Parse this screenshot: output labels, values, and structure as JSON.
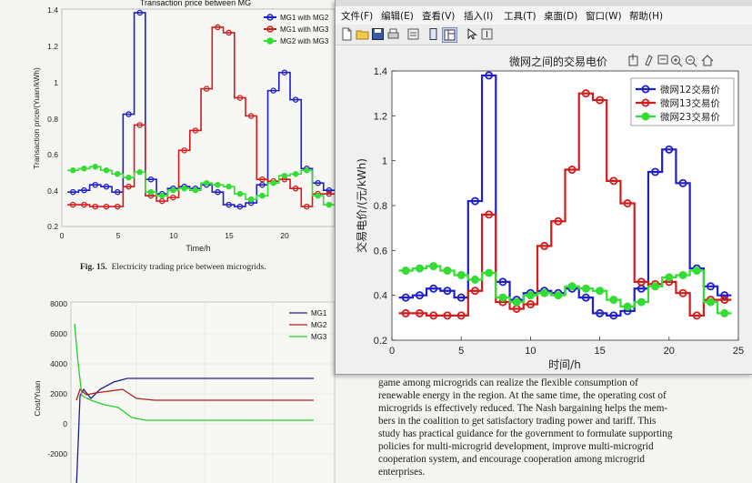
{
  "paper": {
    "top_chart": {
      "title": "Transaction price between MG",
      "ylabel": "Transaction price/(Yuan/kWh)",
      "xlabel": "Time/h",
      "yticks": [
        "1.4",
        "1.2",
        "1",
        "0.8",
        "0.6",
        "0.4",
        "0.2"
      ],
      "xticks": [
        "0",
        "5",
        "10",
        "15",
        "20"
      ],
      "legend": [
        "MG1 with MG2",
        "MG1 with MG3",
        "MG2 with MG3"
      ]
    },
    "caption_label": "Fig. 15.",
    "caption_text": "Electricity trading price between microgrids.",
    "bottom_chart": {
      "ylabel": "Cost/Yuan",
      "yticks": [
        "8000",
        "6000",
        "4000",
        "2000",
        "0",
        "-2000"
      ],
      "legend": [
        "MG1",
        "MG2",
        "MG3"
      ]
    },
    "body_lines": [
      "game among microgrids can realize the flexible consumption of",
      "renewable energy in the region. At the same time, the operating cost of",
      "microgrids is effectively reduced. The Nash bargaining helps the mem-",
      "bers in the coalition to get satisfactory trading power and tariff. This",
      "study has practical guidance for the government to formulate supporting",
      "policies for multi-microgrid development, improve multi-microgrid",
      "cooperation system, and encourage cooperation among microgrid",
      "enterprises."
    ]
  },
  "window": {
    "menu": [
      "文件(F)",
      "编辑(E)",
      "查看(V)",
      "插入(I)",
      "工具(T)",
      "桌面(D)",
      "窗口(W)",
      "帮助(H)"
    ],
    "toolbar_icons": [
      "new-file-icon",
      "open-folder-icon",
      "save-icon",
      "print-icon",
      "print-preview-icon",
      "dock-icon",
      "panel-icon",
      "pointer-icon",
      "insert-text-icon"
    ],
    "axes_toolbar_icons": [
      "export-icon",
      "brush-icon",
      "data-tips-icon",
      "zoom-in-icon",
      "zoom-out-icon",
      "home-icon"
    ]
  },
  "chart_data": [
    {
      "type": "line",
      "title": "微网之间的交易电价",
      "xlabel": "时间/h",
      "ylabel": "交易电价/(元/kWh)",
      "xlim": [
        0,
        25
      ],
      "ylim": [
        0.2,
        1.4
      ],
      "xticks": [
        0,
        5,
        10,
        15,
        20,
        25
      ],
      "yticks": [
        0.2,
        0.4,
        0.6,
        0.8,
        1.0,
        1.2,
        1.4
      ],
      "grid": false,
      "legend_position": "top-right",
      "step": true,
      "x": [
        1,
        2,
        3,
        4,
        5,
        6,
        7,
        8,
        9,
        10,
        11,
        12,
        13,
        14,
        15,
        16,
        17,
        18,
        19,
        20,
        21,
        22,
        23,
        24
      ],
      "series": [
        {
          "name": "微网12交易价",
          "color": "#1f1fc8",
          "values": [
            0.39,
            0.4,
            0.43,
            0.42,
            0.39,
            0.82,
            1.38,
            0.46,
            0.38,
            0.41,
            0.42,
            0.41,
            0.43,
            0.39,
            0.32,
            0.31,
            0.33,
            0.43,
            0.95,
            1.05,
            0.9,
            0.52,
            0.44,
            0.4
          ]
        },
        {
          "name": "微网13交易价",
          "color": "#d21c1c",
          "values": [
            0.32,
            0.32,
            0.31,
            0.31,
            0.31,
            0.42,
            0.76,
            0.37,
            0.34,
            0.36,
            0.62,
            0.73,
            0.96,
            1.3,
            1.27,
            0.91,
            0.81,
            0.46,
            0.45,
            0.46,
            0.41,
            0.31,
            0.38,
            0.38
          ]
        },
        {
          "name": "微网23交易价",
          "color": "#33dd33",
          "values": [
            0.51,
            0.52,
            0.53,
            0.51,
            0.49,
            0.47,
            0.5,
            0.39,
            0.37,
            0.4,
            0.41,
            0.4,
            0.44,
            0.43,
            0.42,
            0.38,
            0.35,
            0.37,
            0.44,
            0.48,
            0.49,
            0.51,
            0.37,
            0.32
          ]
        }
      ]
    }
  ]
}
